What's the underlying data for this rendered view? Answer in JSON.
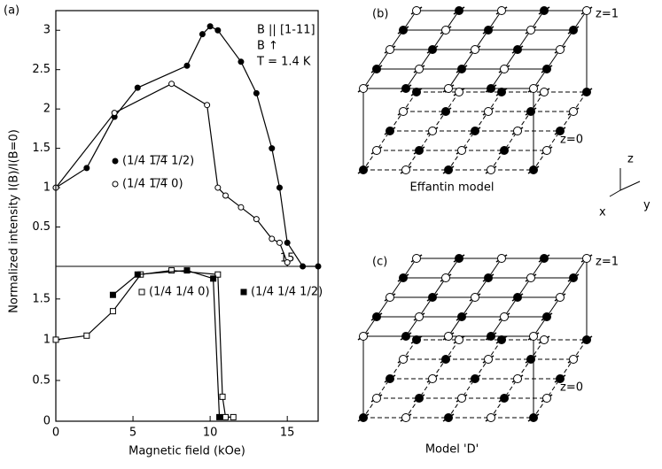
{
  "chart_data": [
    {
      "type": "line",
      "panel_label": "(a)",
      "xlim": [
        0,
        17
      ],
      "ylim": [
        0,
        3.25
      ],
      "xticks": [
        15
      ],
      "yticks": [
        0.5,
        1,
        1.5,
        2,
        2.5,
        3
      ],
      "annotations": [
        "B || [1-11]",
        "B ↑",
        "T = 1.4 K"
      ],
      "series": [
        {
          "name": "(1/4 1̅/̅4̅ 1/2)",
          "color": "#000",
          "marker": "filled-circle",
          "x": [
            0,
            2,
            3.8,
            5.3,
            8.5,
            9.5,
            10,
            10.5,
            12,
            13,
            14,
            14.5,
            15,
            16,
            17
          ],
          "values": [
            1,
            1.25,
            1.9,
            2.27,
            2.55,
            2.95,
            3.05,
            3.0,
            2.6,
            2.2,
            1.5,
            1.0,
            0.3,
            0,
            0
          ]
        },
        {
          "name": "(1/4 1̅/̅4̅ 0)",
          "color": "#000",
          "marker": "open-circle",
          "x": [
            0,
            3.8,
            7.5,
            9.8,
            10.5,
            11,
            12,
            13,
            14,
            14.5,
            15
          ],
          "values": [
            1,
            1.95,
            2.32,
            2.05,
            1.0,
            0.9,
            0.75,
            0.6,
            0.35,
            0.3,
            0.05
          ]
        }
      ]
    },
    {
      "type": "line",
      "xlim": [
        0,
        17
      ],
      "ylim": [
        0,
        1.9
      ],
      "xticks": [
        0,
        5,
        10,
        15
      ],
      "yticks": [
        0,
        0.5,
        1,
        1.5
      ],
      "xlabel": "Magnetic field (kOe)",
      "ylabel": "Normalized intensity I(B)/I(B=0)",
      "series": [
        {
          "name": "(1/4 1/4 0)",
          "color": "#000",
          "marker": "open-square",
          "x": [
            0,
            2,
            3.7,
            5.5,
            7.5,
            10.5,
            10.8,
            11,
            11.5
          ],
          "values": [
            1,
            1.05,
            1.35,
            1.8,
            1.85,
            1.8,
            0.3,
            0.05,
            0.05
          ]
        },
        {
          "name": "(1/4 1/4 1/2)",
          "color": "#000",
          "marker": "filled-square",
          "x": [
            3.7,
            5.3,
            8.5,
            10.2,
            10.6
          ],
          "values": [
            1.55,
            1.8,
            1.85,
            1.75,
            0.05
          ]
        }
      ]
    }
  ],
  "panels": [
    {
      "label": "(b)",
      "top": "z=1",
      "bottom": "z=0",
      "caption": "Effantin model"
    },
    {
      "label": "(c)",
      "top": "z=1",
      "bottom": "z=0",
      "caption": "Model 'D'"
    }
  ],
  "axes_labels": [
    "x",
    "y",
    "z"
  ]
}
